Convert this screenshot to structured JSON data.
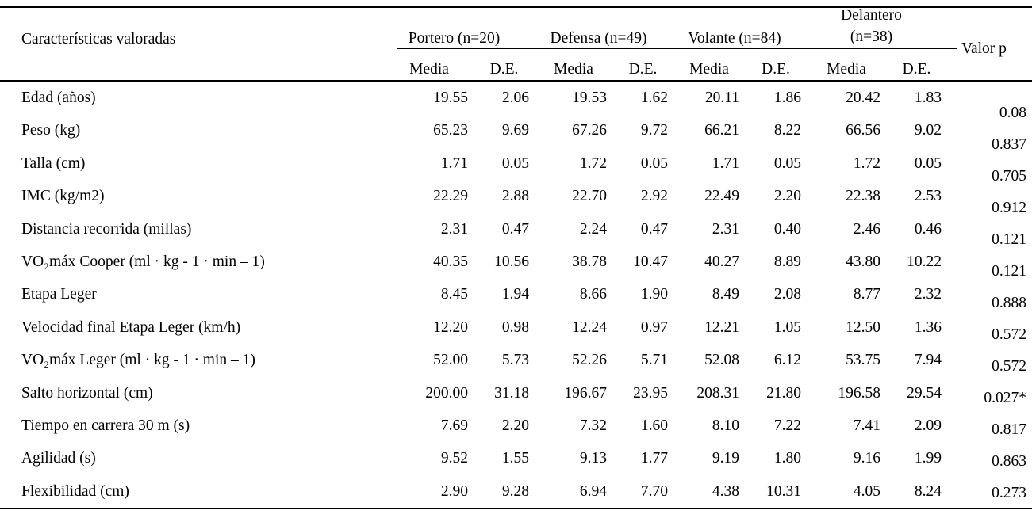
{
  "table": {
    "header": {
      "characteristics_label": "Características valoradas",
      "groups": [
        {
          "line1": "Portero (n=20)",
          "line2": ""
        },
        {
          "line1": "Defensa (n=49)",
          "line2": ""
        },
        {
          "line1": "Volante (n=84)",
          "line2": ""
        },
        {
          "line1": "Delantero",
          "line2": "(n=38)"
        }
      ],
      "subheaders": [
        "Media",
        "D.E.",
        "Media",
        "D.E.",
        "Media",
        "D.E.",
        "Media",
        "D.E."
      ],
      "p_label": "Valor p"
    },
    "rows": [
      {
        "label": "Edad (años)",
        "values": [
          "19.55",
          "2.06",
          "19.53",
          "1.62",
          "20.11",
          "1.86",
          "20.42",
          "1.83"
        ],
        "p": "0.08"
      },
      {
        "label": "Peso (kg)",
        "values": [
          "65.23",
          "9.69",
          "67.26",
          "9.72",
          "66.21",
          "8.22",
          "66.56",
          "9.02"
        ],
        "p": "0.837"
      },
      {
        "label": "Talla (cm)",
        "values": [
          "1.71",
          "0.05",
          "1.72",
          "0.05",
          "1.71",
          "0.05",
          "1.72",
          "0.05"
        ],
        "p": "0.705"
      },
      {
        "label": "IMC (kg/m2)",
        "values": [
          "22.29",
          "2.88",
          "22.70",
          "2.92",
          "22.49",
          "2.20",
          "22.38",
          "2.53"
        ],
        "p": "0.912"
      },
      {
        "label": "Distancia recorrida (millas)",
        "values": [
          "2.31",
          "0.47",
          "2.24",
          "0.47",
          "2.31",
          "0.40",
          "2.46",
          "0.46"
        ],
        "p": "0.121"
      },
      {
        "label": "VO₂máx  Cooper (ml · kg - 1 · min – 1)",
        "values": [
          "40.35",
          "10.56",
          "38.78",
          "10.47",
          "40.27",
          "8.89",
          "43.80",
          "10.22"
        ],
        "p": "0.121"
      },
      {
        "label": "Etapa Leger",
        "values": [
          "8.45",
          "1.94",
          "8.66",
          "1.90",
          "8.49",
          "2.08",
          "8.77",
          "2.32"
        ],
        "p": "0.888"
      },
      {
        "label": "Velocidad final Etapa Leger (km/h)",
        "values": [
          "12.20",
          "0.98",
          "12.24",
          "0.97",
          "12.21",
          "1.05",
          "12.50",
          "1.36"
        ],
        "p": "0.572"
      },
      {
        "label": "VO₂máx Leger (ml · kg - 1 · min – 1)",
        "values": [
          "52.00",
          "5.73",
          "52.26",
          "5.71",
          "52.08",
          "6.12",
          "53.75",
          "7.94"
        ],
        "p": "0.572"
      },
      {
        "label": "Salto horizontal (cm)",
        "values": [
          "200.00",
          "31.18",
          "196.67",
          "23.95",
          "208.31",
          "21.80",
          "196.58",
          "29.54"
        ],
        "p": "0.027*"
      },
      {
        "label": "Tiempo en carrera 30 m (s)",
        "values": [
          "7.69",
          "2.20",
          "7.32",
          "1.60",
          "8.10",
          "7.22",
          "7.41",
          "2.09"
        ],
        "p": "0.817"
      },
      {
        "label": "Agilidad (s)",
        "values": [
          "9.52",
          "1.55",
          "9.13",
          "1.77",
          "9.19",
          "1.80",
          "9.16",
          "1.99"
        ],
        "p": "0.863"
      },
      {
        "label": "Flexibilidad (cm)",
        "values": [
          "2.90",
          "9.28",
          "6.94",
          "7.70",
          "4.38",
          "10.31",
          "4.05",
          "8.24"
        ],
        "p": "0.273"
      }
    ]
  },
  "colors": {
    "text": "#000000",
    "rule": "#000000",
    "background": "#ffffff"
  }
}
